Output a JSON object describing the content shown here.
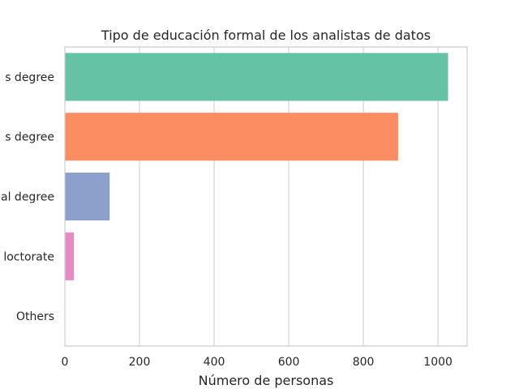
{
  "chart_data": {
    "type": "bar",
    "orientation": "horizontal",
    "title": "Tipo de educación formal de los analistas de datos",
    "xlabel": "Número de personas",
    "ylabel": "",
    "categories": [
      "Bachelor's degree",
      "Master's degree",
      "Professional degree",
      "Doctorate",
      "Others"
    ],
    "category_tick_labels": [
      "s degree",
      "s degree",
      "al degree",
      "loctorate",
      "Others"
    ],
    "values": [
      1027,
      893,
      120,
      24,
      1
    ],
    "colors": [
      "#66c2a5",
      "#fc8d62",
      "#8da0cb",
      "#e78ac3",
      "#a6d854"
    ],
    "xlim": [
      0,
      1078
    ],
    "xticks": [
      0,
      200,
      400,
      600,
      800,
      1000
    ],
    "xtick_labels": [
      "0",
      "200",
      "400",
      "600",
      "800",
      "1000"
    ],
    "grid": "vertical",
    "legend": "none"
  }
}
